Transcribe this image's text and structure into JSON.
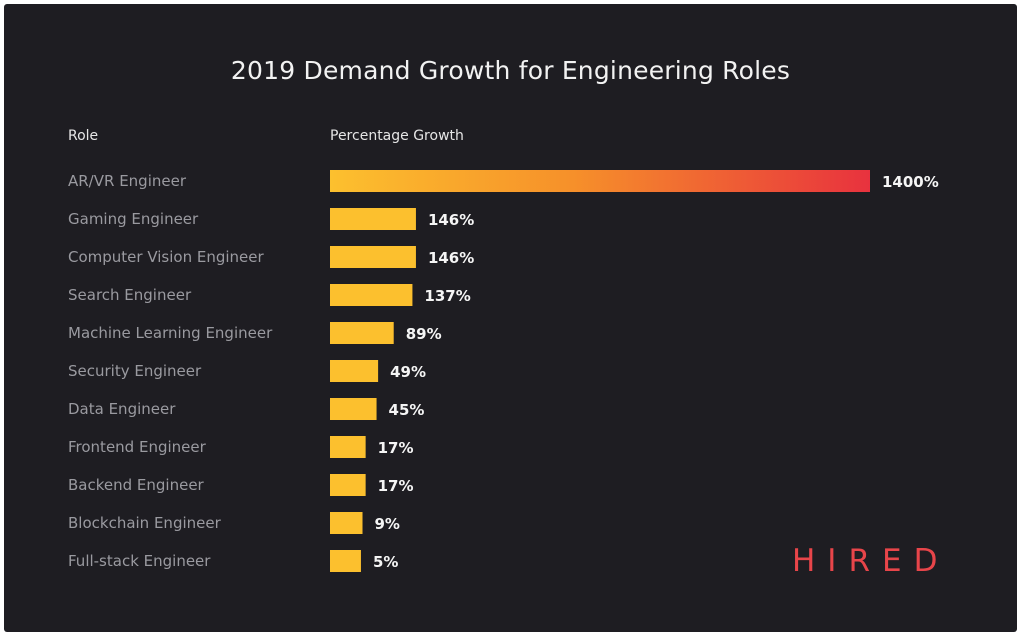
{
  "chart_data": {
    "type": "bar",
    "orientation": "horizontal",
    "title": "2019 Demand Growth for Engineering Roles",
    "category_header": "Role",
    "value_header": "Percentage Growth",
    "categories": [
      "AR/VR Engineer",
      "Gaming Engineer",
      "Computer Vision Engineer",
      "Search Engineer",
      "Machine Learning Engineer",
      "Security Engineer",
      "Data Engineer",
      "Frontend Engineer",
      "Backend Engineer",
      "Blockchain Engineer",
      "Full-stack Engineer"
    ],
    "values": [
      1400,
      146,
      146,
      137,
      89,
      49,
      45,
      17,
      17,
      9,
      5
    ],
    "data_labels": [
      "1400%",
      "146%",
      "146%",
      "137%",
      "89%",
      "49%",
      "45%",
      "17%",
      "17%",
      "9%",
      "5%"
    ],
    "unit": "%",
    "grid": false,
    "legend": "none",
    "colors": {
      "bar": "#fcc02e",
      "bar_gradient_end": "#e8323e",
      "background": "#1e1d22",
      "label_text": "#9a9aa0",
      "value_text": "#f5f5f5"
    }
  },
  "brand": {
    "logo_text": "HIRED",
    "logo_color": "#e8454a"
  }
}
